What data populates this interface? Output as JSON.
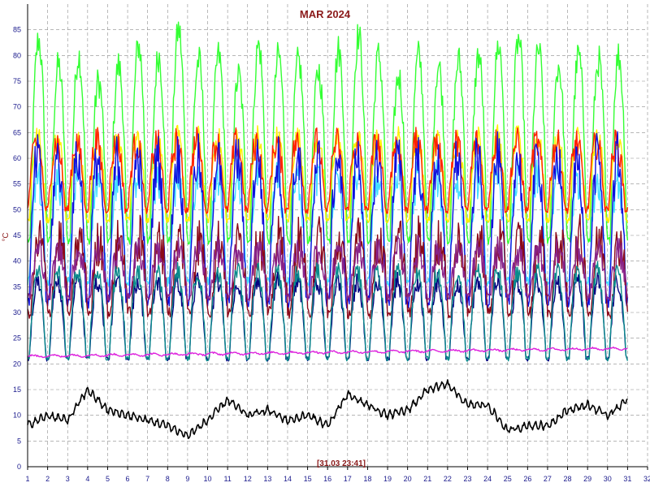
{
  "chart_data": {
    "type": "line",
    "title": "MAR 2024",
    "ylabel": "°C",
    "xlabel": "",
    "xlim": [
      1,
      32
    ],
    "ylim": [
      0,
      90
    ],
    "x_ticks": [
      1,
      2,
      3,
      4,
      5,
      6,
      7,
      8,
      9,
      10,
      11,
      12,
      13,
      14,
      15,
      16,
      17,
      18,
      19,
      20,
      21,
      22,
      23,
      24,
      25,
      26,
      27,
      28,
      29,
      30,
      31,
      32
    ],
    "y_ticks": [
      0,
      5,
      10,
      15,
      20,
      25,
      30,
      35,
      40,
      45,
      50,
      55,
      60,
      65,
      70,
      75,
      80,
      85
    ],
    "grid": true,
    "timestamp_label": "[31.03 23:41]",
    "colors": {
      "title": "#8b1a1a",
      "ticks": "#1a1a8c",
      "grid": "#8c8c8c"
    },
    "series": [
      {
        "color": "#33ff33",
        "base": 44,
        "amp": 34,
        "noise": 2.5,
        "peak_at": 0.55,
        "x": [
          1,
          31
        ],
        "day_peaks": [
          83,
          78,
          80,
          75,
          78,
          82,
          80,
          85,
          79,
          80,
          76,
          82,
          80,
          79,
          77,
          81,
          84,
          80,
          76,
          80,
          78,
          79,
          80,
          82,
          83,
          81,
          78,
          80,
          79,
          80,
          79
        ]
      },
      {
        "color": "#ffee00",
        "base": 48,
        "amp": 16,
        "noise": 2.0,
        "peak_at": 0.5
      },
      {
        "color": "#ff2200",
        "base": 50,
        "amp": 13,
        "noise": 2.5,
        "peak_at": 0.45
      },
      {
        "color": "#44ddff",
        "base": 36,
        "amp": 20,
        "noise": 3.0,
        "peak_at": 0.5
      },
      {
        "color": "#1010dd",
        "base": 32,
        "amp": 28,
        "noise": 4.0,
        "peak_at": 0.5
      },
      {
        "color": "#8b0a1a",
        "base": 30,
        "amp": 14,
        "noise": 4.0,
        "peak_at": 0.6
      },
      {
        "color": "#882288",
        "base": 33,
        "amp": 9,
        "noise": 2.5,
        "peak_at": 0.55
      },
      {
        "color": "#000080",
        "base": 21,
        "amp": 15,
        "noise": 1.5,
        "peak_at": 0.5
      },
      {
        "color": "#0a8c8c",
        "base": 21,
        "amp": 17,
        "noise": 1.5,
        "peak_at": 0.5
      },
      {
        "color": "#dd22dd",
        "base": 22,
        "amp": 0.5,
        "noise": 0.3,
        "trend": [
          21.5,
          23.0
        ]
      },
      {
        "color": "#000000",
        "daily": [
          8,
          10,
          9,
          15,
          11,
          10,
          9,
          8,
          6,
          9,
          13,
          10,
          11,
          9,
          10,
          8,
          14,
          12,
          10,
          11,
          15,
          16,
          12,
          12,
          7,
          8,
          8,
          11,
          12,
          10,
          13
        ]
      }
    ]
  }
}
